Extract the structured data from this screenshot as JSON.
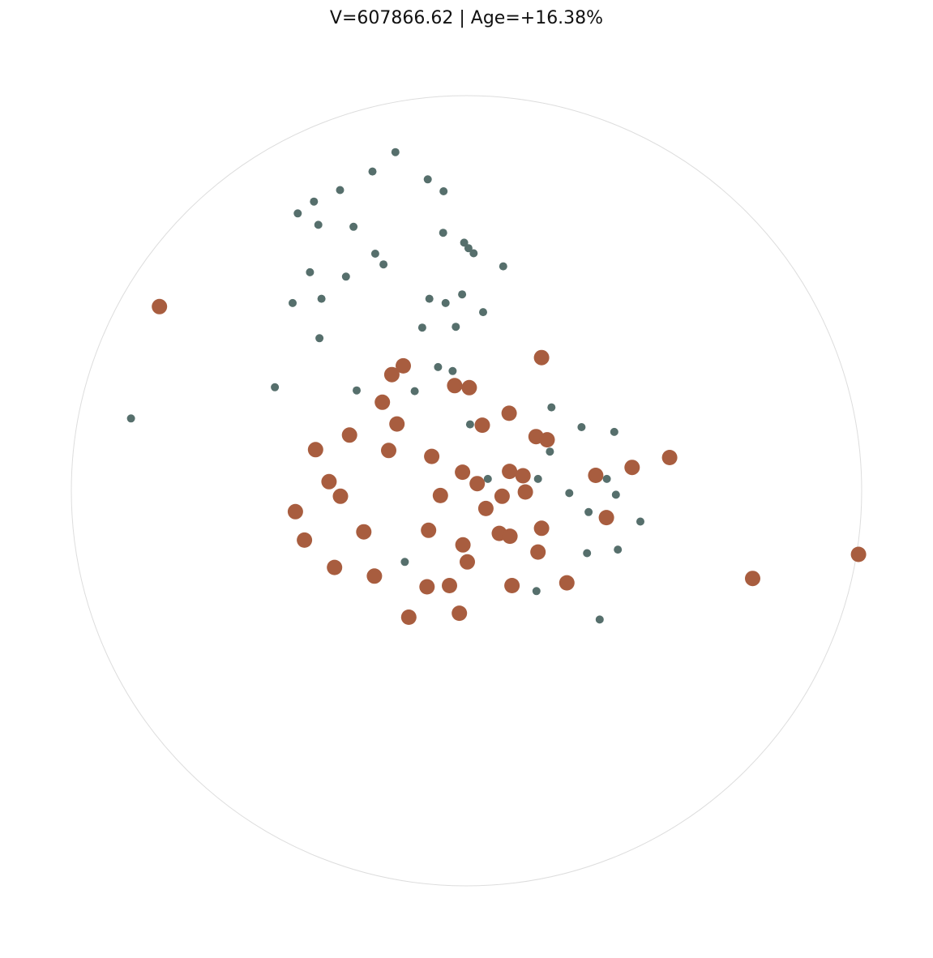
{
  "chart_data": {
    "type": "scatter",
    "title": "V=607866.62 | Age=+16.38%",
    "grid": false,
    "legend": "none",
    "x_range": [
      -1,
      1
    ],
    "y_range": [
      -1,
      1
    ],
    "colors": {
      "small": "#566f6c",
      "large": "#a85d3f",
      "circle": "#dddddd"
    },
    "series": [
      {
        "marker": "small",
        "points": [
          [
            -0.18,
            0.857
          ],
          [
            -0.238,
            0.808
          ],
          [
            -0.098,
            0.788
          ],
          [
            -0.058,
            0.758
          ],
          [
            -0.32,
            0.761
          ],
          [
            -0.386,
            0.732
          ],
          [
            -0.427,
            0.702
          ],
          [
            -0.375,
            0.673
          ],
          [
            -0.286,
            0.668
          ],
          [
            -0.059,
            0.653
          ],
          [
            -0.006,
            0.628
          ],
          [
            0.005,
            0.614
          ],
          [
            0.018,
            0.601
          ],
          [
            -0.231,
            0.6
          ],
          [
            -0.21,
            0.573
          ],
          [
            0.093,
            0.568
          ],
          [
            -0.396,
            0.553
          ],
          [
            -0.305,
            0.542
          ],
          [
            -0.44,
            0.475
          ],
          [
            -0.367,
            0.486
          ],
          [
            -0.094,
            0.486
          ],
          [
            -0.053,
            0.475
          ],
          [
            -0.011,
            0.497
          ],
          [
            0.042,
            0.452
          ],
          [
            -0.112,
            0.413
          ],
          [
            -0.027,
            0.415
          ],
          [
            -0.372,
            0.386
          ],
          [
            -0.072,
            0.313
          ],
          [
            -0.035,
            0.303
          ],
          [
            -0.485,
            0.262
          ],
          [
            -0.278,
            0.254
          ],
          [
            -0.131,
            0.252
          ],
          [
            -0.849,
            0.183
          ],
          [
            0.009,
            0.168
          ],
          [
            0.215,
            0.211
          ],
          [
            0.291,
            0.161
          ],
          [
            0.374,
            0.149
          ],
          [
            0.211,
            0.099
          ],
          [
            0.054,
            0.03
          ],
          [
            0.181,
            0.03
          ],
          [
            0.355,
            0.03
          ],
          [
            0.26,
            -0.006
          ],
          [
            0.378,
            -0.01
          ],
          [
            0.309,
            -0.054
          ],
          [
            0.44,
            -0.078
          ],
          [
            -0.156,
            -0.18
          ],
          [
            0.305,
            -0.158
          ],
          [
            0.383,
            -0.149
          ],
          [
            0.177,
            -0.254
          ],
          [
            0.337,
            -0.326
          ]
        ]
      },
      {
        "marker": "large",
        "points": [
          [
            -0.777,
            0.466
          ],
          [
            0.19,
            0.337
          ],
          [
            -0.16,
            0.316
          ],
          [
            -0.189,
            0.294
          ],
          [
            -0.03,
            0.266
          ],
          [
            0.007,
            0.261
          ],
          [
            -0.213,
            0.224
          ],
          [
            0.108,
            0.196
          ],
          [
            -0.176,
            0.169
          ],
          [
            0.04,
            0.166
          ],
          [
            -0.296,
            0.141
          ],
          [
            0.176,
            0.137
          ],
          [
            0.204,
            0.129
          ],
          [
            -0.382,
            0.104
          ],
          [
            -0.197,
            0.102
          ],
          [
            -0.088,
            0.087
          ],
          [
            0.419,
            0.059
          ],
          [
            0.514,
            0.084
          ],
          [
            -0.01,
            0.047
          ],
          [
            0.109,
            0.049
          ],
          [
            0.143,
            0.038
          ],
          [
            0.327,
            0.039
          ],
          [
            0.027,
            0.018
          ],
          [
            -0.348,
            0.023
          ],
          [
            -0.319,
            -0.014
          ],
          [
            -0.066,
            -0.012
          ],
          [
            0.09,
            -0.014
          ],
          [
            0.149,
            -0.003
          ],
          [
            -0.433,
            -0.053
          ],
          [
            0.049,
            -0.045
          ],
          [
            0.354,
            -0.068
          ],
          [
            -0.26,
            -0.104
          ],
          [
            -0.096,
            -0.1
          ],
          [
            0.19,
            -0.095
          ],
          [
            -0.41,
            -0.125
          ],
          [
            0.083,
            -0.108
          ],
          [
            0.11,
            -0.115
          ],
          [
            -0.009,
            -0.137
          ],
          [
            0.181,
            -0.155
          ],
          [
            0.002,
            -0.18
          ],
          [
            -0.334,
            -0.194
          ],
          [
            -0.233,
            -0.216
          ],
          [
            0.254,
            -0.233
          ],
          [
            -0.1,
            -0.243
          ],
          [
            -0.043,
            -0.24
          ],
          [
            0.115,
            -0.24
          ],
          [
            -0.146,
            -0.32
          ],
          [
            -0.018,
            -0.31
          ],
          [
            0.724,
            -0.222
          ],
          [
            0.992,
            -0.161
          ]
        ]
      }
    ]
  }
}
